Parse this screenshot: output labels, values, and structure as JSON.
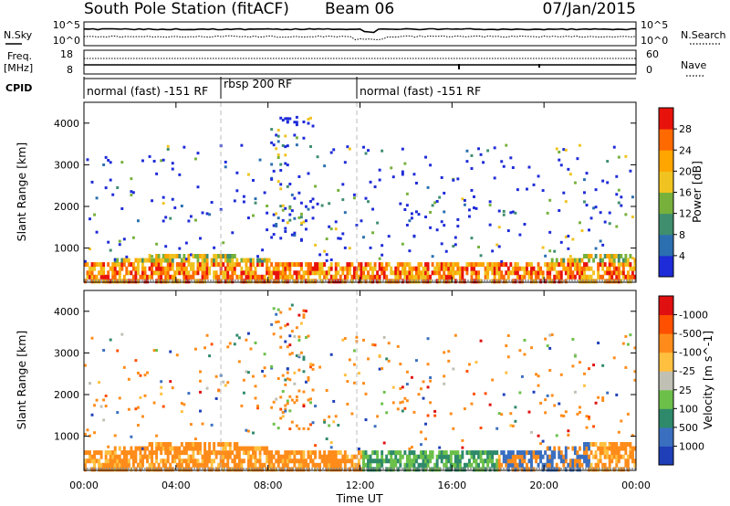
{
  "header": {
    "station_title": "South Pole Station (fitACF)",
    "beam_label": "Beam 06",
    "date": "07/Jan/2015"
  },
  "strips": {
    "nsky": {
      "left_label": "N.Sky",
      "right_label": "N.Search",
      "ticks_left": [
        "10^5",
        "10^0"
      ],
      "ticks_right": [
        "10^5",
        "10^0"
      ]
    },
    "freq": {
      "left_label_line1": "Freq.",
      "left_label_line2": "[MHz]",
      "right_label": "Nave",
      "ticks_left": [
        "18",
        "8"
      ],
      "ticks_right": [
        "60",
        "0"
      ]
    },
    "cpid": {
      "label": "CPID",
      "segments": [
        {
          "label": "normal (fast) -151 RF",
          "start_hour": 0,
          "end_hour": 6
        },
        {
          "label": "rbsp 200 RF",
          "start_hour": 6,
          "end_hour": 12
        },
        {
          "label": "normal (fast) -151 RF",
          "start_hour": 12,
          "end_hour": 24
        }
      ]
    }
  },
  "x_axis": {
    "label": "Time UT",
    "tick_labels": [
      "00:00",
      "04:00",
      "08:00",
      "12:00",
      "16:00",
      "20:00",
      "00:00"
    ],
    "tick_hours": [
      0,
      4,
      8,
      12,
      16,
      20,
      24
    ]
  },
  "chart_data": [
    {
      "type": "heatmap",
      "title": "",
      "xlabel": "Time UT",
      "ylabel": "Slant Range [km]",
      "xlim_hours": [
        0,
        24
      ],
      "ylim_km": [
        180,
        4500
      ],
      "ytick_values": [
        1000,
        2000,
        3000,
        4000
      ],
      "ytick_labels": [
        "1000",
        "2000",
        "3000",
        "4000"
      ],
      "colorbar": {
        "label": "Power [dB]",
        "levels": [
          0,
          4,
          8,
          12,
          16,
          20,
          24,
          28,
          32
        ],
        "tick_labels": [
          "4",
          "8",
          "12",
          "16",
          "20",
          "24",
          "28"
        ],
        "colors": [
          "#1e2bd8",
          "#2b6fb0",
          "#3f8e6e",
          "#77b13c",
          "#f0c320",
          "#ffa500",
          "#ff6a00",
          "#e8120c"
        ]
      }
    },
    {
      "type": "heatmap",
      "title": "",
      "xlabel": "Time UT",
      "ylabel": "Slant Range [km]",
      "xlim_hours": [
        0,
        24
      ],
      "ylim_km": [
        180,
        4500
      ],
      "ytick_values": [
        1000,
        2000,
        3000,
        4000
      ],
      "ytick_labels": [
        "1000",
        "2000",
        "3000",
        "4000"
      ],
      "colorbar": {
        "label": "Velocity [m s^-1]",
        "levels": [
          "",
          "1000",
          "500",
          "100",
          "25",
          "-25",
          "-100",
          "-500",
          "-1000",
          ""
        ],
        "tick_labels": [
          "1000",
          "500",
          "100",
          "25",
          "-25",
          "-100",
          "-500",
          "-1000"
        ],
        "colors": [
          "#1e3fb8",
          "#3a6fc0",
          "#2e8a6a",
          "#6cc04a",
          "#c0c0b4",
          "#ffc040",
          "#ff8c1a",
          "#ff5000",
          "#e01010"
        ]
      }
    }
  ]
}
